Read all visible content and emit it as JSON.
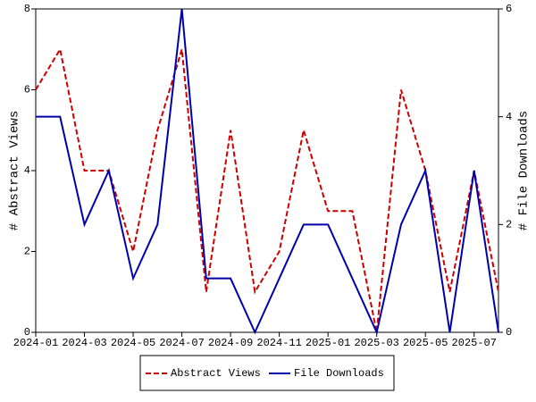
{
  "chart_data": {
    "type": "line",
    "categories": [
      "2024-01",
      null,
      "2024-03",
      null,
      "2024-05",
      null,
      "2024-07",
      null,
      "2024-09",
      null,
      "2024-11",
      null,
      "2025-01",
      null,
      "2025-03",
      null,
      "2025-05",
      null,
      "2025-07",
      null
    ],
    "y_label": "# Abstract Views",
    "y2_label": "# File Downloads",
    "ylim": [
      0,
      8
    ],
    "yticks": [
      0,
      2,
      4,
      6,
      8
    ],
    "y2lim": [
      0,
      6
    ],
    "y2ticks": [
      0,
      2,
      4,
      6
    ],
    "series": [
      {
        "name": "Abstract Views",
        "color": "#cc0000",
        "style": "dashed",
        "axis": "y",
        "values": [
          6,
          7,
          4,
          4,
          2,
          5,
          7,
          1,
          5,
          1,
          2,
          5,
          3,
          3,
          0,
          6,
          4,
          1,
          4,
          1
        ]
      },
      {
        "name": "File Downloads",
        "color": "#0000aa",
        "style": "solid",
        "axis": "y2",
        "values": [
          4,
          4,
          2,
          3,
          1,
          2,
          6,
          1,
          1,
          0,
          1,
          2,
          2,
          1,
          0,
          2,
          3,
          0,
          3,
          0
        ]
      }
    ],
    "legend": "bottom"
  }
}
